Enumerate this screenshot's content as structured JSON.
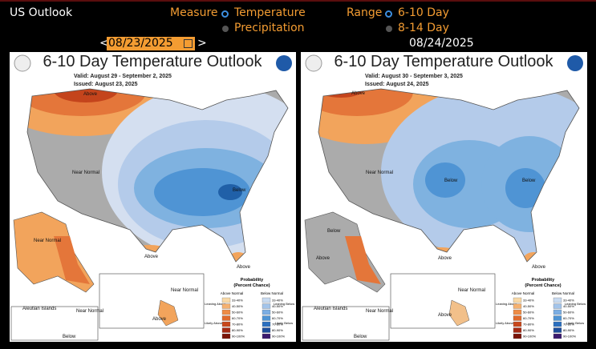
{
  "header": {
    "title": "US Outlook",
    "measure_label": "Measure",
    "measure_options": [
      "Temperature",
      "Precipitation"
    ],
    "range_label": "Range",
    "range_options": [
      "6-10 Day",
      "8-14 Day"
    ],
    "date": "08/23/2025",
    "prev": "<",
    "next": ">",
    "date2": "08/24/2025"
  },
  "maps": [
    {
      "title": "6-10 Day Temperature Outlook",
      "valid": "Valid:  August 29 - September 2, 2025",
      "issued": "Issued:  August 23, 2025",
      "labels": [
        "Above",
        "Near Normal",
        "Below",
        "Above",
        "Above",
        "Near Normal",
        "Near Normal",
        "Above",
        "Aleutian Islands",
        "Near Normal",
        "Below"
      ]
    },
    {
      "title": "6-10 Day Temperature Outlook",
      "valid": "Valid:  August 30 - September 3, 2025",
      "issued": "Issued:  August 24, 2025",
      "labels": [
        "Above",
        "Near Normal",
        "Below",
        "Below",
        "Above",
        "Above",
        "Below",
        "Above",
        "Near Normal",
        "Above",
        "Aleutian Islands",
        "Near Normal",
        "Below"
      ]
    }
  ],
  "legend": {
    "title": "Probability",
    "subtitle": "(Percent Chance)",
    "above": "Above Normal",
    "below": "Below Normal",
    "leaning_above": "Leaning Above",
    "likely_above": "Likely Above",
    "leaning_below": "Leaning Below",
    "likely_below": "Likely Below",
    "ranges": [
      "33-40%",
      "40-50%",
      "50-60%",
      "60-70%",
      "70-80%",
      "80-90%",
      "90-100%"
    ]
  }
}
